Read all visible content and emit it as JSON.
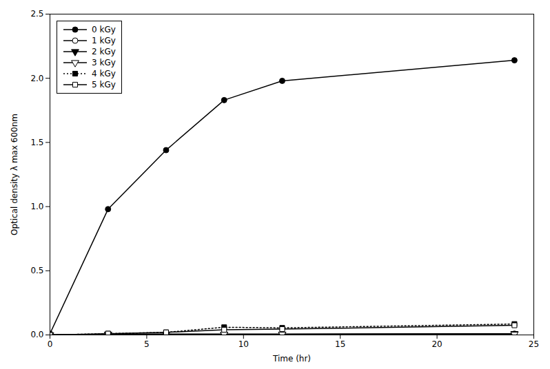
{
  "chart_data": {
    "type": "line",
    "xlabel": "Time (hr)",
    "ylabel": "Optical density λ max 600nm",
    "x": [
      0,
      3,
      6,
      9,
      12,
      24
    ],
    "series": [
      {
        "name": "0 kGy",
        "color": "black",
        "marker": "circle",
        "line_style": "solid",
        "values": [
          0.01,
          0.98,
          1.44,
          1.83,
          1.98,
          2.14
        ]
      },
      {
        "name": "1 kGy",
        "color": "black",
        "marker": "circle_open",
        "line_style": "solid",
        "values": [
          0.0,
          0.005,
          0.005,
          0.005,
          0.005,
          0.01
        ]
      },
      {
        "name": "2 kGy",
        "color": "black",
        "marker": "triangle_down",
        "line_style": "solid",
        "values": [
          0.0,
          0.005,
          0.005,
          0.005,
          0.005,
          0.01
        ]
      },
      {
        "name": "3 kGy",
        "color": "black",
        "marker": "triangle_down_open",
        "line_style": "solid",
        "values": [
          0.0,
          0.005,
          0.005,
          0.005,
          0.005,
          0.005
        ]
      },
      {
        "name": "4 kGy",
        "color": "black",
        "marker": "square",
        "line_style": "dotted",
        "values": [
          0.0,
          0.01,
          0.02,
          0.06,
          0.055,
          0.085
        ]
      },
      {
        "name": "5 kGy",
        "color": "black",
        "marker": "square_open",
        "line_style": "solid",
        "values": [
          0.0,
          0.01,
          0.02,
          0.04,
          0.045,
          0.075
        ]
      }
    ],
    "xlim": [
      0,
      25
    ],
    "ylim": [
      0,
      2.5
    ],
    "xticks": [
      0,
      5,
      10,
      15,
      20,
      25
    ],
    "yticks": [
      {
        "value": 0.0,
        "label": "0.0"
      },
      0.5,
      {
        "value": 1.0,
        "label": "1.0"
      },
      1.5,
      {
        "value": 2.0,
        "label": "2.0"
      },
      2.5
    ],
    "grid": false,
    "legend": "upper left"
  }
}
